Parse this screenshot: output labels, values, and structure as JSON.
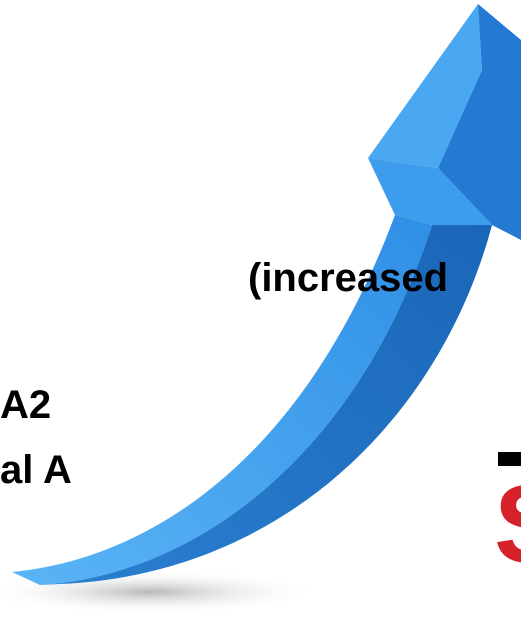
{
  "texts": {
    "line1": "(increased",
    "line2": "A2",
    "line3": "al A",
    "edge_letter": "S"
  }
}
